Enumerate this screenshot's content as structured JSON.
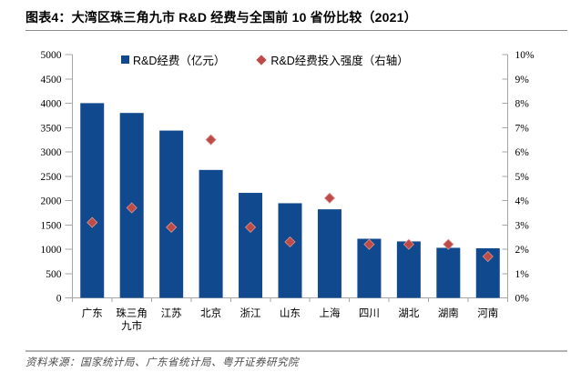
{
  "figure": {
    "title": "图表4：大湾区珠三角九市 R&D 经费与全国前 10 省份比较（2021）",
    "source": "资料来源：国家统计局、广东省统计局、粤开证券研究院"
  },
  "chart_data": {
    "type": "bar",
    "title": "大湾区珠三角九市 R&D 经费与全国前 10 省份比较（2021）",
    "categories": [
      "广东",
      "珠三角九市",
      "江苏",
      "北京",
      "浙江",
      "山东",
      "上海",
      "四川",
      "湖北",
      "湖南",
      "河南"
    ],
    "categories_display": [
      [
        "广东"
      ],
      [
        "珠三角",
        "九市"
      ],
      [
        "江苏"
      ],
      [
        "北京"
      ],
      [
        "浙江"
      ],
      [
        "山东"
      ],
      [
        "上海"
      ],
      [
        "四川"
      ],
      [
        "湖北"
      ],
      [
        "湖南"
      ],
      [
        "河南"
      ]
    ],
    "series": [
      {
        "name": "R&D经费（亿元）",
        "type": "bar",
        "axis": "left",
        "color": "#11498E",
        "values": [
          4002,
          3800,
          3438,
          2629,
          2158,
          1945,
          1820,
          1215,
          1160,
          1029,
          1019
        ]
      },
      {
        "name": "R&D经费投入强度（右轴）",
        "type": "scatter",
        "marker": "diamond",
        "axis": "right",
        "color": "#BE4B48",
        "unit": "%",
        "values": [
          3.1,
          3.7,
          2.9,
          6.5,
          2.9,
          2.3,
          4.1,
          2.2,
          2.2,
          2.2,
          1.7
        ]
      }
    ],
    "left_axis": {
      "min": 0,
      "max": 5000,
      "step": 500
    },
    "right_axis": {
      "min": 0,
      "max": 10,
      "step": 1,
      "format": "percent"
    },
    "legend_position": "top",
    "grid": false,
    "axis_color": "#A6A6A6",
    "tick_label_color": "#000000"
  }
}
